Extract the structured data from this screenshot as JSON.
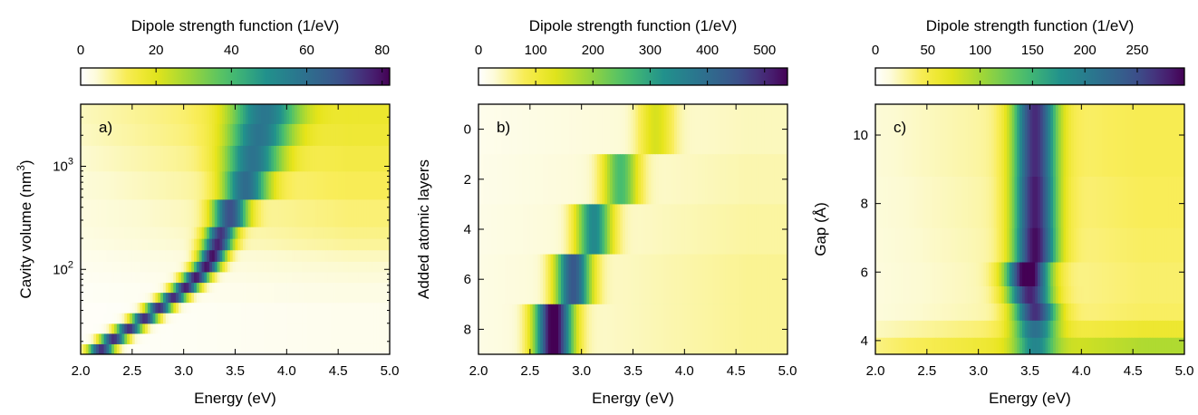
{
  "chart_data": [
    {
      "type": "heatmap",
      "panel_label": "a)",
      "colorbar": {
        "label": "Dipole strength function (1/eV)",
        "range": [
          0,
          82
        ],
        "ticks": [
          "0",
          "20",
          "40",
          "60",
          "80"
        ],
        "tick_values": [
          0,
          20,
          40,
          60,
          80
        ]
      },
      "xlabel": "Energy (eV)",
      "xlim": [
        2.0,
        5.0
      ],
      "xticks": [
        "2.0",
        "2.5",
        "3.0",
        "3.5",
        "4.0",
        "4.5",
        "5.0"
      ],
      "ylabel": "Cavity volume (nm",
      "ylabel_sup": "3",
      "ylabel_end": ")",
      "yscale": "log",
      "ylim": [
        15,
        4000
      ],
      "yticks": [
        {
          "value": 100,
          "base": "10",
          "exp": "2"
        },
        {
          "value": 1000,
          "base": "10",
          "exp": "3"
        }
      ],
      "bands": [
        {
          "y0": 15,
          "y1": 19,
          "peak": 2.2,
          "width": 0.09,
          "height": 74,
          "bg": 2
        },
        {
          "y0": 19,
          "y1": 24,
          "peak": 2.32,
          "width": 0.09,
          "height": 74,
          "bg": 2
        },
        {
          "y0": 24,
          "y1": 30,
          "peak": 2.47,
          "width": 0.09,
          "height": 74,
          "bg": 2
        },
        {
          "y0": 30,
          "y1": 38,
          "peak": 2.62,
          "width": 0.09,
          "height": 74,
          "bg": 2
        },
        {
          "y0": 38,
          "y1": 48,
          "peak": 2.76,
          "width": 0.09,
          "height": 74,
          "bg": 2
        },
        {
          "y0": 48,
          "y1": 60,
          "peak": 2.9,
          "width": 0.09,
          "height": 74,
          "bg": 3
        },
        {
          "y0": 60,
          "y1": 75,
          "peak": 3.02,
          "width": 0.09,
          "height": 76,
          "bg": 3
        },
        {
          "y0": 75,
          "y1": 95,
          "peak": 3.12,
          "width": 0.09,
          "height": 76,
          "bg": 4
        },
        {
          "y0": 95,
          "y1": 120,
          "peak": 3.22,
          "width": 0.09,
          "height": 76,
          "bg": 5
        },
        {
          "y0": 120,
          "y1": 155,
          "peak": 3.28,
          "width": 0.09,
          "height": 76,
          "bg": 6
        },
        {
          "y0": 155,
          "y1": 200,
          "peak": 3.33,
          "width": 0.1,
          "height": 72,
          "bg": 8
        },
        {
          "y0": 200,
          "y1": 260,
          "peak": 3.36,
          "width": 0.1,
          "height": 68,
          "bg": 9
        },
        {
          "y0": 260,
          "y1": 480,
          "peak": 3.45,
          "width": 0.12,
          "height": 62,
          "bg": 10
        },
        {
          "y0": 480,
          "y1": 900,
          "peak": 3.6,
          "width": 0.16,
          "height": 52,
          "bg": 12
        },
        {
          "y0": 900,
          "y1": 1600,
          "peak": 3.67,
          "width": 0.2,
          "height": 48,
          "bg": 14
        },
        {
          "y0": 1600,
          "y1": 2600,
          "peak": 3.73,
          "width": 0.22,
          "height": 46,
          "bg": 16
        },
        {
          "y0": 2600,
          "y1": 4000,
          "peak": 3.78,
          "width": 0.24,
          "height": 44,
          "bg": 17
        }
      ]
    },
    {
      "type": "heatmap",
      "panel_label": "b)",
      "colorbar": {
        "label": "Dipole strength function (1/eV)",
        "range": [
          0,
          540
        ],
        "ticks": [
          "0",
          "100",
          "200",
          "300",
          "400",
          "500"
        ],
        "tick_values": [
          0,
          100,
          200,
          300,
          400,
          500
        ]
      },
      "xlabel": "Energy (eV)",
      "xlim": [
        2.0,
        5.0
      ],
      "xticks": [
        "2.0",
        "2.5",
        "3.0",
        "3.5",
        "4.0",
        "4.5",
        "5.0"
      ],
      "ylabel": "Added atomic layers",
      "yscale": "linear",
      "ylim": [
        9,
        -1
      ],
      "yticks": [
        {
          "value": 0,
          "label": "0"
        },
        {
          "value": 2,
          "label": "2"
        },
        {
          "value": 4,
          "label": "4"
        },
        {
          "value": 6,
          "label": "6"
        },
        {
          "value": 8,
          "label": "8"
        }
      ],
      "bands": [
        {
          "y0": -1,
          "y1": 1,
          "peak": 3.72,
          "width": 0.12,
          "height": 110,
          "bg": 40
        },
        {
          "y0": 1,
          "y1": 3,
          "peak": 3.38,
          "width": 0.12,
          "height": 230,
          "bg": 45
        },
        {
          "y0": 3,
          "y1": 5,
          "peak": 3.12,
          "width": 0.12,
          "height": 310,
          "bg": 50
        },
        {
          "y0": 5,
          "y1": 7,
          "peak": 2.92,
          "width": 0.12,
          "height": 410,
          "bg": 55
        },
        {
          "y0": 7,
          "y1": 9,
          "peak": 2.73,
          "width": 0.13,
          "height": 530,
          "bg": 55
        }
      ]
    },
    {
      "type": "heatmap",
      "panel_label": "c)",
      "colorbar": {
        "label": "Dipole strength function (1/eV)",
        "range": [
          0,
          295
        ],
        "ticks": [
          "0",
          "50",
          "100",
          "150",
          "200",
          "250"
        ],
        "tick_values": [
          0,
          50,
          100,
          150,
          200,
          250
        ]
      },
      "xlabel": "Energy (eV)",
      "xlim": [
        2.0,
        5.0
      ],
      "xticks": [
        "2.0",
        "2.5",
        "3.0",
        "3.5",
        "4.0",
        "4.5",
        "5.0"
      ],
      "ylabel": "Gap (Å)",
      "yscale": "linear",
      "ylim": [
        3.6,
        10.9
      ],
      "yticks": [
        {
          "value": 4,
          "label": "4"
        },
        {
          "value": 6,
          "label": "6"
        },
        {
          "value": 8,
          "label": "8"
        },
        {
          "value": 10,
          "label": "10"
        }
      ],
      "bands": [
        {
          "y0": 3.6,
          "y1": 4.1,
          "peak": 3.55,
          "width": 0.14,
          "height": 120,
          "bg": 95
        },
        {
          "y0": 4.1,
          "y1": 4.6,
          "peak": 3.55,
          "width": 0.15,
          "height": 170,
          "bg": 60
        },
        {
          "y0": 4.6,
          "y1": 5.1,
          "peak": 3.55,
          "width": 0.15,
          "height": 240,
          "bg": 40
        },
        {
          "y0": 5.1,
          "y1": 5.6,
          "peak": 3.5,
          "width": 0.15,
          "height": 250,
          "bg": 38
        },
        {
          "y0": 5.6,
          "y1": 6.3,
          "peak": 3.48,
          "width": 0.15,
          "height": 290,
          "bg": 38
        },
        {
          "y0": 6.3,
          "y1": 7.3,
          "peak": 3.55,
          "width": 0.15,
          "height": 260,
          "bg": 40
        },
        {
          "y0": 7.3,
          "y1": 8.8,
          "peak": 3.55,
          "width": 0.15,
          "height": 250,
          "bg": 42
        },
        {
          "y0": 8.8,
          "y1": 10.9,
          "peak": 3.55,
          "width": 0.15,
          "height": 240,
          "bg": 45
        }
      ]
    }
  ]
}
